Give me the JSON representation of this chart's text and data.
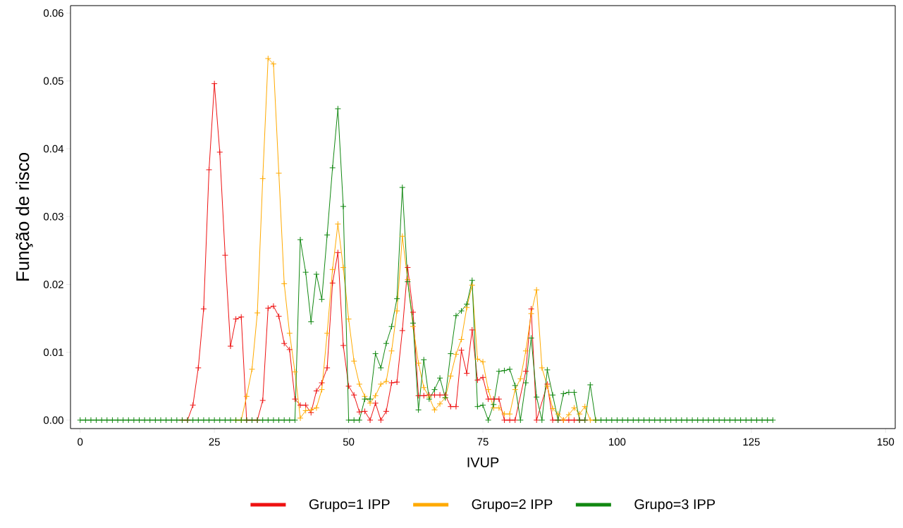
{
  "chart_data": {
    "type": "line",
    "xlabel": "IVUP",
    "ylabel": "Função de risco",
    "x": [
      0,
      1,
      2,
      3,
      4,
      5,
      6,
      7,
      8,
      9,
      10,
      11,
      12,
      13,
      14,
      15,
      16,
      17,
      18,
      19,
      20,
      21,
      22,
      23,
      24,
      25,
      26,
      27,
      28,
      29,
      30,
      31,
      32,
      33,
      34,
      35,
      36,
      37,
      38,
      39,
      40,
      41,
      42,
      43,
      44,
      45,
      46,
      47,
      48,
      49,
      50,
      51,
      52,
      53,
      54,
      55,
      56,
      57,
      58,
      59,
      60,
      61,
      62,
      63,
      64,
      65,
      66,
      67,
      68,
      69,
      70,
      71,
      72,
      73,
      74,
      75,
      76,
      77,
      78,
      79,
      80,
      81,
      82,
      83,
      84,
      85,
      86,
      87,
      88,
      89,
      90,
      91,
      92,
      93,
      94,
      95,
      96,
      97,
      98,
      99,
      100,
      101,
      102,
      103,
      104,
      105,
      106,
      107,
      108,
      109,
      110,
      111,
      112,
      113,
      114,
      115,
      116,
      117,
      118,
      119,
      120,
      121,
      122,
      123,
      124,
      125,
      126,
      127,
      128,
      129
    ],
    "series": [
      {
        "name": "Grupo=1 IPP",
        "color": "#ee1111",
        "x": [
          19,
          20,
          21,
          22,
          23,
          24,
          25,
          26,
          27,
          28,
          29,
          30,
          31,
          32,
          33,
          34,
          35,
          36,
          37,
          38,
          39,
          40,
          41,
          42,
          43,
          44,
          45,
          46,
          47,
          48,
          49,
          50,
          51,
          52,
          53,
          54,
          55,
          56,
          57,
          58,
          59,
          60,
          61,
          62,
          63,
          64,
          65,
          66,
          67,
          68,
          69,
          70,
          71,
          72,
          73,
          74,
          75,
          76,
          77,
          78,
          79,
          80,
          81,
          83,
          84,
          85,
          87,
          88,
          89,
          90,
          91,
          92,
          93,
          94
        ],
        "values": [
          0,
          0,
          0.0022,
          0.0077,
          0.0164,
          0.0369,
          0.0496,
          0.0395,
          0.0243,
          0.0109,
          0.0149,
          0.0152,
          0,
          0,
          0,
          0.0029,
          0.0165,
          0.0168,
          0.0153,
          0.0113,
          0.0104,
          0.0031,
          0.0022,
          0.0022,
          0.0011,
          0.0043,
          0.0055,
          0.0077,
          0.0202,
          0.0247,
          0.011,
          0.005,
          0.0037,
          0.0012,
          0.0013,
          0,
          0.0025,
          0,
          0.0013,
          0.0055,
          0.0056,
          0.0132,
          0.0225,
          0.0159,
          0.0036,
          0.0036,
          0.0037,
          0.0037,
          0.0037,
          0.0037,
          0.002,
          0.002,
          0.0103,
          0.0069,
          0.0133,
          0.0059,
          0.0063,
          0.0031,
          0.0031,
          0.0031,
          0,
          0,
          0,
          0.0072,
          0.0164,
          0,
          0.0053,
          0,
          0,
          0,
          0,
          0,
          0,
          0
        ]
      },
      {
        "name": "Grupo=2 IPP",
        "color": "#ffaa00",
        "values": [
          null,
          null,
          null,
          null,
          null,
          null,
          null,
          null,
          null,
          null,
          null,
          null,
          null,
          null,
          null,
          null,
          null,
          null,
          null,
          null,
          null,
          null,
          null,
          null,
          null,
          null,
          null,
          null,
          null,
          0,
          0,
          0.0035,
          0.0075,
          0.0158,
          0.0356,
          0.0533,
          0.0525,
          0.0364,
          0.0201,
          0.0128,
          0.0071,
          0.0003,
          0.0014,
          0.0015,
          0.0018,
          0.0045,
          0.0128,
          0.0222,
          0.0289,
          0.0225,
          0.0149,
          0.0087,
          0.0053,
          0.0035,
          0.0025,
          0.0036,
          0.0053,
          0.0057,
          0.0102,
          0.0161,
          0.0271,
          0.0207,
          0.0138,
          0.0084,
          0.0048,
          0.0034,
          0.0015,
          0.0024,
          0.0033,
          0.0065,
          0.0097,
          0.0119,
          0.0166,
          0.0199,
          0.009,
          0.0086,
          0.0045,
          0.0018,
          0.0018,
          0.0009,
          0.0009,
          0.0045,
          0.0061,
          0.0102,
          0.0157,
          0.0192,
          0.0077,
          0.005,
          0.0017,
          0.0009,
          0,
          0.0008,
          0.0018,
          0.0009,
          0.002,
          0,
          0,
          null,
          null,
          null,
          null,
          null,
          null,
          null,
          null,
          null,
          null,
          null,
          null,
          null,
          null,
          null,
          null,
          null,
          null,
          null,
          null,
          null,
          null,
          null,
          null,
          null,
          null,
          null,
          null,
          null,
          null,
          null,
          null,
          null
        ]
      },
      {
        "name": "Grupo=3 IPP",
        "color": "#118811",
        "values": [
          0,
          0,
          0,
          0,
          0,
          0,
          0,
          0,
          0,
          0,
          0,
          0,
          0,
          0,
          0,
          0,
          0,
          0,
          0,
          0,
          0,
          0,
          0,
          0,
          0,
          0,
          0,
          0,
          0,
          0,
          0,
          0,
          0,
          0,
          0,
          0,
          0,
          0,
          0,
          0,
          0,
          0.0266,
          0.0218,
          0.0145,
          0.0215,
          0.0178,
          0.0273,
          0.0372,
          0.0459,
          0.0315,
          0,
          0,
          0,
          0.0031,
          0.0031,
          0.0098,
          0.0077,
          0.0113,
          0.0138,
          0.0179,
          0.0343,
          0.0204,
          0.0143,
          0.0015,
          0.0089,
          0.0031,
          0.0045,
          0.0062,
          0.0033,
          0.0098,
          0.0154,
          0.0161,
          0.0171,
          0.0206,
          0.002,
          0.0022,
          0,
          0.0023,
          0.0072,
          0.0073,
          0.0075,
          0.0051,
          0,
          0.0055,
          0.0121,
          0.0034,
          0,
          0.0074,
          0.0037,
          0,
          0.0039,
          0.0041,
          0.0041,
          0,
          0,
          0.0052,
          0,
          0,
          0,
          0,
          0,
          0,
          0,
          0,
          0,
          0,
          0,
          0,
          0,
          0,
          0,
          0,
          0,
          0,
          0,
          0,
          0,
          0,
          0,
          0,
          0,
          0,
          0,
          0,
          0,
          0,
          0,
          0,
          0,
          0
        ]
      }
    ],
    "xlim": [
      -1.8,
      151.8
    ],
    "xticks": [
      0,
      25,
      50,
      75,
      100,
      125,
      150
    ],
    "ylim": [
      -0.00125,
      0.0611
    ],
    "yticks": [
      {
        "value": 0,
        "label": "0.00"
      },
      {
        "value": 0.01,
        "label": "0.01"
      },
      {
        "value": 0.02,
        "label": "0.02"
      },
      {
        "value": 0.03,
        "label": "0.03"
      },
      {
        "value": 0.04,
        "label": "0.04"
      },
      {
        "value": 0.05,
        "label": "0.05"
      },
      {
        "value": 0.06,
        "label": "0.06"
      }
    ],
    "marker": "cross",
    "line_style": "solid",
    "legend": "bottom",
    "grid": false
  }
}
